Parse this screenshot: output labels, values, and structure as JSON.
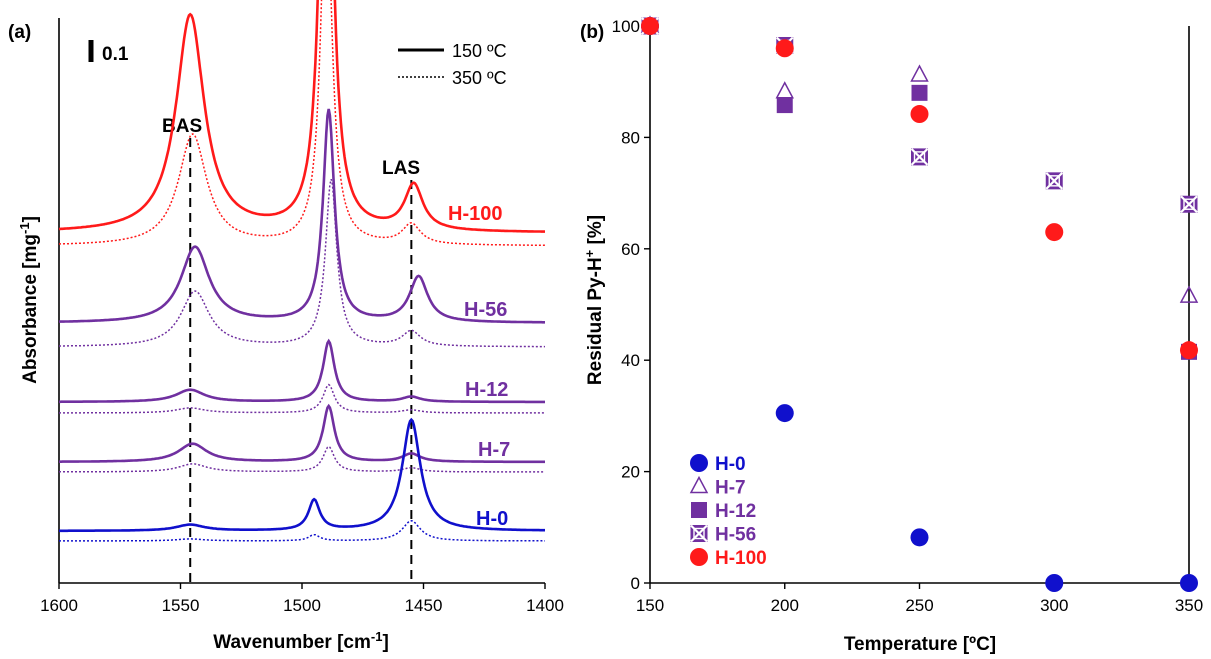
{
  "panel_a": {
    "label": "(a)",
    "scale_bar_label": "0.1",
    "legend": [
      {
        "label": "150 ºC",
        "style": "solid"
      },
      {
        "label": "350 ºC",
        "style": "dotted"
      }
    ],
    "annotations": {
      "bas": "BAS",
      "las": "LAS"
    },
    "xlabel_main": "Wavenumber [cm",
    "xlabel_sup": "-1",
    "xlabel_end": "]",
    "ylabel_main": "Absorbance [mg",
    "ylabel_sup": "-1",
    "ylabel_end": "]",
    "series_labels": [
      "H-100",
      "H-56",
      "H-12",
      "H-7",
      "H-0"
    ]
  },
  "panel_b": {
    "label": "(b)",
    "xlabel": "Temperature [ºC]",
    "ylabel_main": "Residual Py-H",
    "ylabel_sup": "+",
    "ylabel_end": " [%]",
    "legend": [
      "H-0",
      "H-7",
      "H-12",
      "H-56",
      "H-100"
    ]
  },
  "colors": {
    "H-100": "#ff1a1a",
    "H-56": "#7030a0",
    "H-12": "#7030a0",
    "H-7": "#7030a0",
    "H-0": "#1010cc"
  },
  "chart_data": [
    {
      "type": "line",
      "xlabel": "Wavenumber [cm-1]",
      "ylabel": "Absorbance [mg-1]",
      "xlim": [
        1600,
        1400
      ],
      "x_reversed": true,
      "xticks": [
        1600,
        1550,
        1500,
        1450,
        1400
      ],
      "reference_lines": [
        1546,
        1455
      ],
      "series": [
        {
          "name": "H-100",
          "color": "#ff1a1a",
          "peaks_150": [
            {
              "x": 1546,
              "h": 0.215
            },
            {
              "x": 1490,
              "h": 0.59
            },
            {
              "x": 1454,
              "h": 0.045
            }
          ],
          "peaks_350": [
            {
              "x": 1545,
              "h": 0.11
            },
            {
              "x": 1490,
              "h": 0.36
            },
            {
              "x": 1455,
              "h": 0.02
            }
          ]
        },
        {
          "name": "H-56",
          "color": "#7030a0",
          "peaks_150": [
            {
              "x": 1544,
              "h": 0.075
            },
            {
              "x": 1489,
              "h": 0.21
            },
            {
              "x": 1452,
              "h": 0.045
            }
          ],
          "peaks_350": [
            {
              "x": 1544,
              "h": 0.055
            },
            {
              "x": 1488,
              "h": 0.165
            },
            {
              "x": 1455,
              "h": 0.015
            }
          ]
        },
        {
          "name": "H-12",
          "color": "#7030a0",
          "peaks_150": [
            {
              "x": 1546,
              "h": 0.012
            },
            {
              "x": 1489,
              "h": 0.06
            },
            {
              "x": 1455,
              "h": 0.005
            }
          ],
          "peaks_350": [
            {
              "x": 1546,
              "h": 0.005
            },
            {
              "x": 1489,
              "h": 0.028
            },
            {
              "x": 1455,
              "h": 0.003
            }
          ]
        },
        {
          "name": "H-7",
          "color": "#7030a0",
          "peaks_150": [
            {
              "x": 1545,
              "h": 0.018
            },
            {
              "x": 1489,
              "h": 0.055
            },
            {
              "x": 1455,
              "h": 0.008
            }
          ],
          "peaks_350": [
            {
              "x": 1545,
              "h": 0.008
            },
            {
              "x": 1489,
              "h": 0.025
            },
            {
              "x": 1455,
              "h": 0.004
            }
          ]
        },
        {
          "name": "H-0",
          "color": "#1010cc",
          "peaks_150": [
            {
              "x": 1546,
              "h": 0.006
            },
            {
              "x": 1495,
              "h": 0.03
            },
            {
              "x": 1455,
              "h": 0.11
            }
          ],
          "peaks_350": [
            {
              "x": 1546,
              "h": 0.002
            },
            {
              "x": 1495,
              "h": 0.006
            },
            {
              "x": 1455,
              "h": 0.02
            }
          ]
        }
      ]
    },
    {
      "type": "scatter",
      "xlabel": "Temperature [ºC]",
      "ylabel": "Residual Py-H+ [%]",
      "xlim": [
        150,
        350
      ],
      "ylim": [
        0,
        100
      ],
      "xticks": [
        150,
        200,
        250,
        300,
        350
      ],
      "yticks": [
        0,
        20,
        40,
        60,
        80,
        100
      ],
      "series": [
        {
          "name": "H-0",
          "marker": "circle",
          "color": "#1010cc",
          "x": [
            150,
            200,
            250,
            300,
            350
          ],
          "y": [
            100,
            30.5,
            8.2,
            0,
            0
          ]
        },
        {
          "name": "H-7",
          "marker": "triangle-open",
          "color": "#7030a0",
          "x": [
            150,
            200,
            250,
            350
          ],
          "y": [
            100,
            88.2,
            91.2,
            51.5
          ]
        },
        {
          "name": "H-12",
          "marker": "square",
          "color": "#7030a0",
          "x": [
            150,
            200,
            250,
            350
          ],
          "y": [
            100,
            85.8,
            88.0,
            41.5
          ]
        },
        {
          "name": "H-56",
          "marker": "square-x",
          "color": "#7030a0",
          "x": [
            150,
            200,
            250,
            300,
            350
          ],
          "y": [
            100,
            96.5,
            76.5,
            72.2,
            68.0
          ]
        },
        {
          "name": "H-100",
          "marker": "circle",
          "color": "#ff1a1a",
          "x": [
            150,
            200,
            250,
            300,
            350
          ],
          "y": [
            100,
            96.0,
            84.2,
            63.0,
            41.8
          ]
        }
      ]
    }
  ]
}
